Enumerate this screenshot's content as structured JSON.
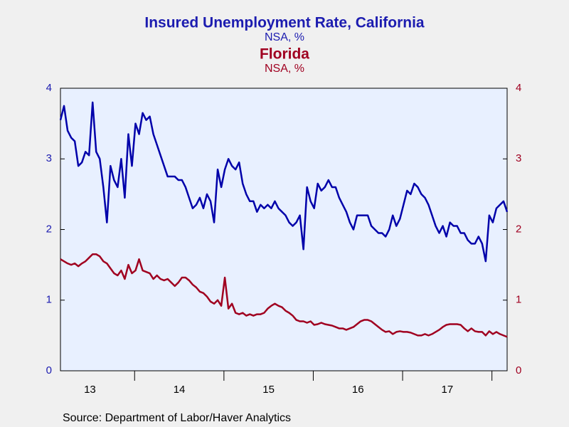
{
  "chart_data": {
    "type": "line",
    "title": "Insured Unemployment Rate, California",
    "subtitle": "NSA, %",
    "title2": "Florida",
    "subtitle2": "NSA, %",
    "source": "Source:  Department of Labor/Haver Analytics",
    "x": [
      13.17,
      13.21,
      13.25,
      13.29,
      13.33,
      13.37,
      13.41,
      13.45,
      13.49,
      13.53,
      13.57,
      13.61,
      13.65,
      13.69,
      13.73,
      13.77,
      13.81,
      13.85,
      13.89,
      13.93,
      13.97,
      14.01,
      14.05,
      14.09,
      14.13,
      14.17,
      14.21,
      14.25,
      14.29,
      14.33,
      14.37,
      14.41,
      14.45,
      14.49,
      14.53,
      14.57,
      14.61,
      14.65,
      14.69,
      14.73,
      14.77,
      14.81,
      14.85,
      14.89,
      14.93,
      14.97,
      15.01,
      15.05,
      15.09,
      15.13,
      15.17,
      15.21,
      15.25,
      15.29,
      15.33,
      15.37,
      15.41,
      15.45,
      15.49,
      15.53,
      15.57,
      15.61,
      15.65,
      15.69,
      15.73,
      15.77,
      15.81,
      15.85,
      15.89,
      15.93,
      15.97,
      16.01,
      16.05,
      16.09,
      16.13,
      16.17,
      16.21,
      16.25,
      16.29,
      16.33,
      16.37,
      16.41,
      16.45,
      16.49,
      16.53,
      16.57,
      16.61,
      16.65,
      16.69,
      16.73,
      16.77,
      16.81,
      16.85,
      16.89,
      16.93,
      16.97,
      17.01,
      17.05,
      17.09,
      17.13,
      17.17,
      17.21,
      17.25,
      17.29,
      17.33,
      17.37,
      17.41,
      17.45,
      17.49,
      17.53,
      17.57,
      17.61,
      17.65,
      17.69,
      17.73,
      17.77,
      17.81,
      17.85,
      17.89,
      17.93,
      17.97,
      18.01,
      18.05,
      18.09,
      18.13,
      18.17
    ],
    "xlim": [
      13.17,
      18.17
    ],
    "xticks": [
      {
        "value": 13.5,
        "label": "13"
      },
      {
        "value": 14.5,
        "label": "14"
      },
      {
        "value": 15.5,
        "label": "15"
      },
      {
        "value": 16.5,
        "label": "16"
      },
      {
        "value": 17.5,
        "label": "17"
      }
    ],
    "ylim": [
      0,
      4
    ],
    "yticks": [
      0,
      1,
      2,
      3,
      4
    ],
    "y2lim": [
      0,
      4
    ],
    "y2ticks": [
      0,
      1,
      2,
      3,
      4
    ],
    "series": [
      {
        "name": "California",
        "color": "#0000aa",
        "values": [
          3.55,
          3.75,
          3.4,
          3.3,
          3.25,
          2.9,
          2.95,
          3.1,
          3.05,
          3.8,
          3.1,
          3.0,
          2.6,
          2.1,
          2.9,
          2.7,
          2.6,
          3.0,
          2.45,
          3.35,
          2.9,
          3.5,
          3.35,
          3.65,
          3.55,
          3.6,
          3.35,
          3.2,
          3.05,
          2.9,
          2.75,
          2.75,
          2.75,
          2.7,
          2.7,
          2.6,
          2.45,
          2.3,
          2.35,
          2.45,
          2.3,
          2.5,
          2.4,
          2.1,
          2.85,
          2.6,
          2.85,
          3.0,
          2.9,
          2.85,
          2.95,
          2.65,
          2.5,
          2.4,
          2.4,
          2.25,
          2.35,
          2.3,
          2.35,
          2.3,
          2.4,
          2.3,
          2.25,
          2.2,
          2.1,
          2.05,
          2.1,
          2.2,
          1.72,
          2.6,
          2.4,
          2.3,
          2.65,
          2.55,
          2.6,
          2.7,
          2.6,
          2.6,
          2.45,
          2.35,
          2.25,
          2.1,
          2.0,
          2.2,
          2.2,
          2.2,
          2.2,
          2.05,
          2.0,
          1.95,
          1.95,
          1.9,
          2.0,
          2.2,
          2.05,
          2.15,
          2.35,
          2.55,
          2.5,
          2.65,
          2.6,
          2.5,
          2.45,
          2.35,
          2.2,
          2.05,
          1.95,
          2.05,
          1.9,
          2.1,
          2.05,
          2.05,
          1.95,
          1.95,
          1.85,
          1.8,
          1.8,
          1.9,
          1.8,
          1.55,
          2.2,
          2.1,
          2.3,
          2.35,
          2.4,
          2.25
        ]
      },
      {
        "name": "Florida",
        "color": "#a00020",
        "axis": "y2",
        "values": [
          1.58,
          1.55,
          1.52,
          1.5,
          1.52,
          1.48,
          1.52,
          1.55,
          1.6,
          1.65,
          1.65,
          1.62,
          1.55,
          1.52,
          1.45,
          1.38,
          1.35,
          1.42,
          1.3,
          1.5,
          1.38,
          1.42,
          1.58,
          1.42,
          1.4,
          1.38,
          1.3,
          1.35,
          1.3,
          1.28,
          1.3,
          1.25,
          1.2,
          1.25,
          1.32,
          1.32,
          1.28,
          1.22,
          1.18,
          1.12,
          1.1,
          1.05,
          0.98,
          0.95,
          1.0,
          0.92,
          1.32,
          0.88,
          0.95,
          0.82,
          0.8,
          0.82,
          0.78,
          0.8,
          0.78,
          0.8,
          0.8,
          0.82,
          0.88,
          0.92,
          0.95,
          0.92,
          0.9,
          0.85,
          0.82,
          0.78,
          0.72,
          0.7,
          0.7,
          0.68,
          0.7,
          0.65,
          0.66,
          0.68,
          0.66,
          0.65,
          0.64,
          0.62,
          0.6,
          0.6,
          0.58,
          0.6,
          0.62,
          0.66,
          0.7,
          0.72,
          0.72,
          0.7,
          0.66,
          0.62,
          0.58,
          0.55,
          0.56,
          0.52,
          0.55,
          0.56,
          0.55,
          0.55,
          0.54,
          0.52,
          0.5,
          0.5,
          0.52,
          0.5,
          0.52,
          0.55,
          0.58,
          0.62,
          0.65,
          0.66,
          0.66,
          0.66,
          0.65,
          0.6,
          0.56,
          0.6,
          0.56,
          0.55,
          0.55,
          0.5,
          0.56,
          0.52,
          0.55,
          0.52,
          0.5,
          0.48
        ]
      }
    ]
  }
}
